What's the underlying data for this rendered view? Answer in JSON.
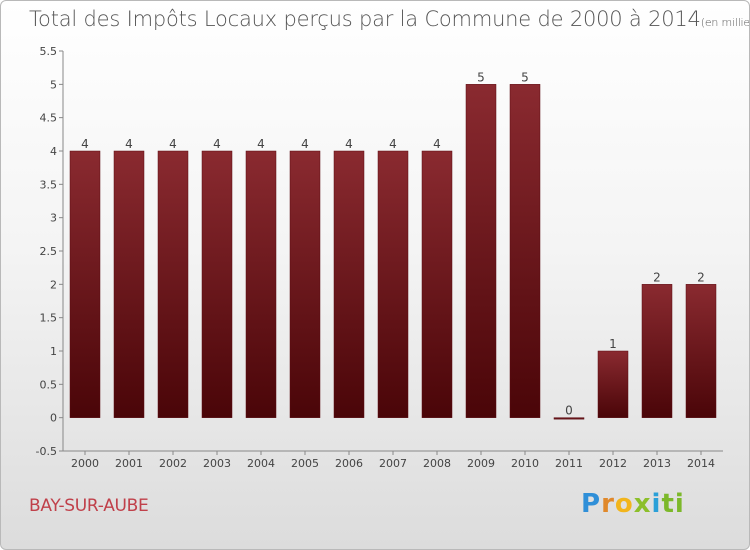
{
  "chart_data": {
    "type": "bar",
    "title": "Total des Impôts Locaux perçus par la Commune de 2000 à 2014",
    "unit": "(en milliers d'€)",
    "categories": [
      "2000",
      "2001",
      "2002",
      "2003",
      "2004",
      "2005",
      "2006",
      "2007",
      "2008",
      "2009",
      "2010",
      "2011",
      "2012",
      "2013",
      "2014"
    ],
    "values": [
      4,
      4,
      4,
      4,
      4,
      4,
      4,
      4,
      4,
      5,
      5,
      0,
      1,
      2,
      2
    ],
    "value_labels": [
      "4",
      "4",
      "4",
      "4",
      "4",
      "4",
      "4",
      "4",
      "4",
      "5",
      "5",
      "0",
      "1",
      "2",
      "2"
    ],
    "yticks": [
      "-0.5",
      "0",
      "0.5",
      "1",
      "1.5",
      "2",
      "2.5",
      "3",
      "3.5",
      "4",
      "4.5",
      "5",
      "5.5"
    ],
    "ylim": [
      -0.5,
      5.5
    ],
    "xlabel": "",
    "ylabel": "",
    "bar_color": "#6b1a1f",
    "grid": false
  },
  "commune": "BAY-SUR-AUBE",
  "logo": [
    "P",
    "r",
    "o",
    "x",
    "i",
    "ti"
  ]
}
